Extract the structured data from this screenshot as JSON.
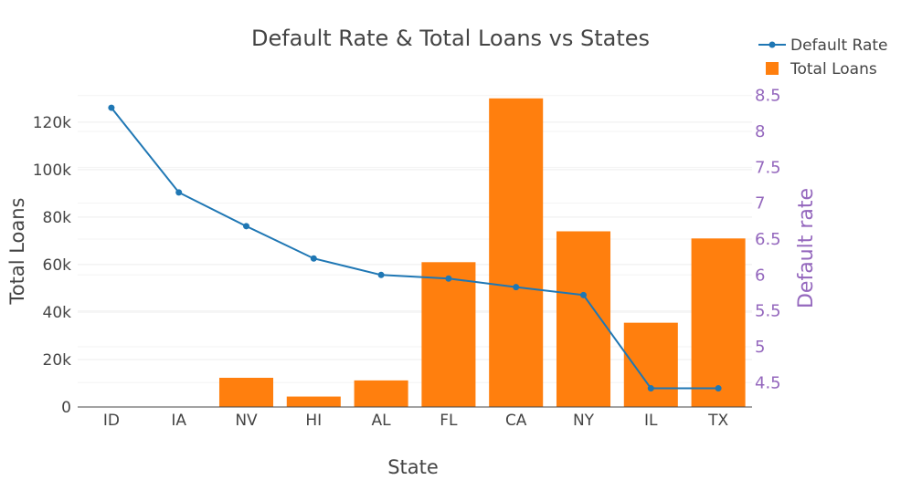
{
  "chart_data": {
    "type": "bar+line",
    "title": "Default Rate & Total Loans vs States",
    "xlabel": "State",
    "ylabel": "Total Loans",
    "y2label": "Default rate",
    "categories": [
      "ID",
      "IA",
      "NV",
      "HI",
      "AL",
      "FL",
      "CA",
      "NY",
      "IL",
      "TX"
    ],
    "series": [
      {
        "name": "Total Loans",
        "type": "bar",
        "axis": "y",
        "color": "#ff7f0e",
        "values": [
          0,
          0,
          12300,
          4400,
          11200,
          61000,
          130000,
          74000,
          35500,
          71000
        ]
      },
      {
        "name": "Default Rate",
        "type": "line",
        "axis": "y2",
        "color": "#1f77b4",
        "values": [
          8.33,
          7.15,
          6.68,
          6.23,
          6.0,
          5.95,
          5.83,
          5.72,
          4.42,
          4.42
        ]
      }
    ],
    "ylim": [
      0,
      133000
    ],
    "y_ticks": [
      0,
      20000,
      40000,
      60000,
      80000,
      100000,
      120000
    ],
    "y_tick_labels": [
      "0",
      "20k",
      "40k",
      "60k",
      "80k",
      "100k",
      "120k"
    ],
    "y2lim": [
      4.16,
      8.56
    ],
    "y2_ticks": [
      4.5,
      5,
      5.5,
      6,
      6.5,
      7,
      7.5,
      8,
      8.5
    ],
    "y2_tick_labels": [
      "4.5",
      "5",
      "5.5",
      "6",
      "6.5",
      "7",
      "7.5",
      "8",
      "8.5"
    ],
    "grid": true,
    "legend": "top-right"
  }
}
